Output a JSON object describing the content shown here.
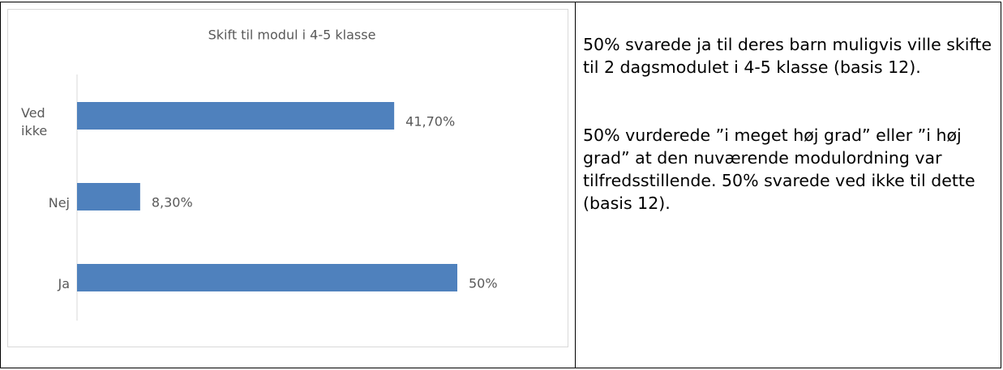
{
  "chart_data": {
    "type": "bar",
    "orientation": "horizontal",
    "title": "Skift til modul i 4-5 klasse",
    "categories": [
      "Ved ikke",
      "Nej",
      "Ja"
    ],
    "values": [
      41.7,
      8.3,
      50
    ],
    "value_labels": [
      "41,70%",
      "8,30%",
      "50%"
    ],
    "color": "#4f81bd"
  },
  "text": {
    "paragraphs": [
      "50% svarede ja til deres barn mulig­vis ville skifte til 2 dagsmodulet i 4-5 klasse (basis 12).",
      "50% vurderede ”i meget høj grad” eller ”i høj grad” at den nuværende modulordning var tilfredsstillende. 50% svarede ved ikke til dette (basis 12)."
    ]
  }
}
